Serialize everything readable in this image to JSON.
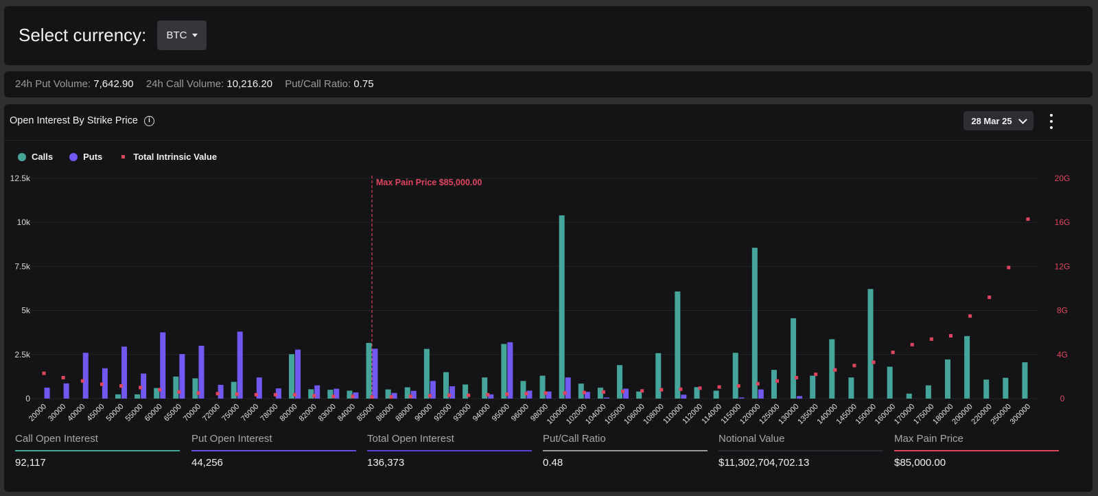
{
  "header": {
    "select_label": "Select currency:",
    "currency": "BTC"
  },
  "stats": [
    {
      "label": "24h Put Volume:",
      "value": "7,642.90"
    },
    {
      "label": "24h Call Volume:",
      "value": "10,216.20"
    },
    {
      "label": "Put/Call Ratio:",
      "value": "0.75"
    }
  ],
  "card": {
    "title": "Open Interest By Strike Price",
    "info_icon": "info-icon",
    "expiry": "28 Mar 25",
    "menu_icon": "kebab-menu-icon"
  },
  "legend": [
    {
      "name": "Calls",
      "color": "#45a59b",
      "shape": "circle"
    },
    {
      "name": "Puts",
      "color": "#7158f0",
      "shape": "circle"
    },
    {
      "name": "Total Intrinsic Value",
      "color": "#e0455f",
      "shape": "square"
    }
  ],
  "chart_data": {
    "type": "bar",
    "title": "",
    "xlabel": "",
    "ylabel": "",
    "categories": [
      "20000",
      "30000",
      "40000",
      "45000",
      "50000",
      "55000",
      "60000",
      "65000",
      "70000",
      "72000",
      "75000",
      "76000",
      "78000",
      "80000",
      "82000",
      "83000",
      "84000",
      "85000",
      "86000",
      "88000",
      "90000",
      "92000",
      "93000",
      "94000",
      "95000",
      "96000",
      "98000",
      "100000",
      "102000",
      "104000",
      "105000",
      "106000",
      "108000",
      "110000",
      "112000",
      "114000",
      "115000",
      "120000",
      "125000",
      "130000",
      "135000",
      "140000",
      "145000",
      "150000",
      "160000",
      "170000",
      "175000",
      "180000",
      "200000",
      "220000",
      "250000",
      "300000"
    ],
    "series": [
      {
        "name": "Calls",
        "color": "#45a59b",
        "axis": "left",
        "values": [
          0,
          0,
          0,
          0,
          240,
          240,
          600,
          1250,
          1150,
          0,
          950,
          0,
          0,
          2520,
          530,
          500,
          450,
          3160,
          520,
          640,
          2820,
          1500,
          800,
          1200,
          3100,
          1000,
          1300,
          10400,
          850,
          620,
          1900,
          400,
          2580,
          6080,
          650,
          450,
          2600,
          8560,
          1630,
          4560,
          1300,
          3370,
          1200,
          6220,
          1810,
          280,
          750,
          2220,
          3550,
          1080,
          1180,
          2060
        ]
      },
      {
        "name": "Puts",
        "color": "#7158f0",
        "axis": "left",
        "values": [
          620,
          860,
          2600,
          1720,
          2950,
          1420,
          3760,
          2530,
          3000,
          780,
          3800,
          1200,
          580,
          2780,
          750,
          560,
          350,
          2830,
          320,
          440,
          1000,
          700,
          0,
          240,
          3200,
          450,
          400,
          1200,
          380,
          60,
          560,
          0,
          0,
          220,
          0,
          0,
          60,
          520,
          0,
          140,
          0,
          0,
          0,
          0,
          0,
          0,
          0,
          0,
          0,
          0,
          0,
          0
        ]
      },
      {
        "name": "Total Intrinsic Value",
        "color": "#e0455f",
        "axis": "right",
        "type": "scatter",
        "values": [
          2.3,
          1.9,
          1.6,
          1.3,
          1.15,
          1.0,
          0.8,
          0.6,
          0.5,
          0.45,
          0.4,
          0.35,
          0.35,
          0.35,
          0.25,
          0.2,
          0.2,
          0.15,
          0.15,
          0.2,
          0.25,
          0.3,
          0.3,
          0.35,
          0.4,
          0.45,
          0.5,
          0.5,
          0.55,
          0.6,
          0.65,
          0.7,
          0.8,
          0.85,
          0.95,
          1.05,
          1.15,
          1.35,
          1.6,
          1.9,
          2.2,
          2.6,
          3.0,
          3.3,
          4.2,
          4.9,
          5.4,
          5.7,
          7.5,
          9.2,
          11.9,
          16.3
        ]
      }
    ],
    "y_left": {
      "min": 0,
      "max": 12500,
      "ticks": [
        "0",
        "2.5k",
        "5k",
        "7.5k",
        "10k",
        "12.5k"
      ],
      "tick_values": [
        0,
        2500,
        5000,
        7500,
        10000,
        12500
      ]
    },
    "y_right": {
      "min": 0,
      "max": 20,
      "unit": "G",
      "ticks": [
        "0",
        "4G",
        "8G",
        "12G",
        "16G",
        "20G"
      ],
      "tick_values": [
        0,
        4,
        8,
        12,
        16,
        20
      ]
    },
    "grid": true,
    "annotation": {
      "category": "85000",
      "text": "Max Pain Price $85,000.00",
      "color": "#e0455f",
      "style": "dashed-vertical-line"
    }
  },
  "summary": [
    {
      "label": "Call Open Interest",
      "value": "92,117",
      "color": "#45a59b"
    },
    {
      "label": "Put Open Interest",
      "value": "44,256",
      "color": "#6651e8"
    },
    {
      "label": "Total Open Interest",
      "value": "136,373",
      "color": "#5a42de"
    },
    {
      "label": "Put/Call Ratio",
      "value": "0.48",
      "color": "#9a9a9a"
    },
    {
      "label": "Notional Value",
      "value": "$11,302,704,702.13",
      "color": "#2a2b2e"
    },
    {
      "label": "Max Pain Price",
      "value": "$85,000.00",
      "color": "#e0455f"
    }
  ]
}
